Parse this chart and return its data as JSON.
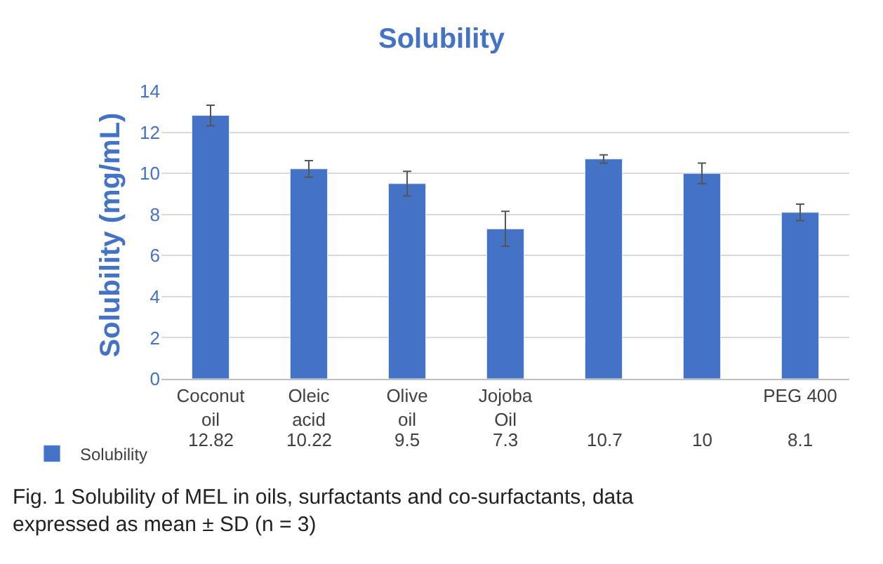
{
  "chart_data": {
    "type": "bar",
    "title": "Solubility",
    "ylabel": "Solubility (mg/mL)",
    "categories": [
      "Coconut oil",
      "Oleic acid",
      "Olive oil",
      "Jojoba Oil",
      null,
      null,
      "PEG 400"
    ],
    "series": [
      {
        "name": "Solubility",
        "color": "#4472c4",
        "values": [
          12.82,
          10.22,
          9.5,
          7.3,
          10.7,
          10,
          8.1
        ],
        "errors": [
          0.5,
          0.4,
          0.6,
          0.85,
          0.2,
          0.5,
          0.4
        ]
      }
    ],
    "ylim": [
      0,
      14
    ],
    "yticks": [
      0,
      2,
      4,
      6,
      8,
      10,
      12,
      14
    ],
    "grid": "y",
    "legend": "bottom left",
    "data_labels": true,
    "annotations": [
      "Fig. 1 Solubility of MEL in oils, surfactants and co-surfactants, data expressed as mean ± SD (n = 3)"
    ]
  }
}
